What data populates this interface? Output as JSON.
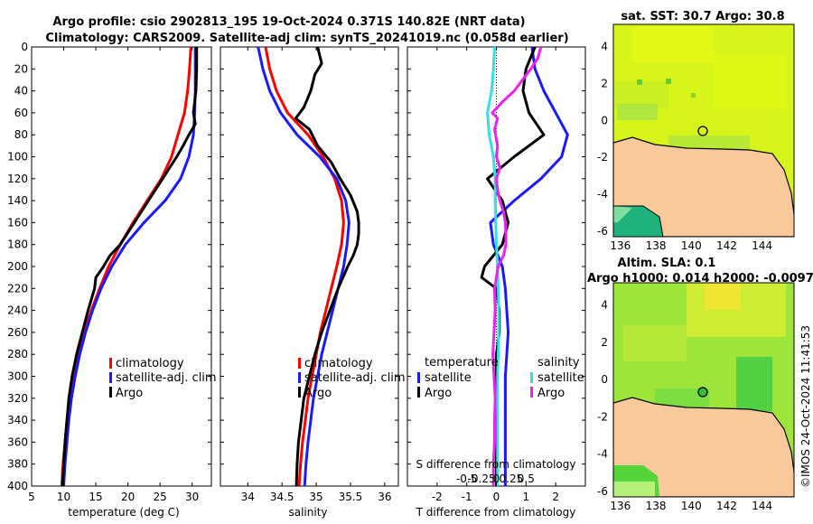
{
  "header": {
    "line1": "Argo profile: csio 2902813_195 19-Oct-2024 0.371S 140.82E (NRT data)",
    "line2": "Climatology: CARS2009. Satellite-adj clim: synTS_20241019.nc (0.058d earlier)"
  },
  "side_label": "©IMOS 24-Oct-2024 11:41:53",
  "colors": {
    "climatology": "#ff0000",
    "satellite": "#1a1aff",
    "argo": "#000000",
    "sal_satellite": "#33e0e8",
    "sal_argo": "#ee22ee",
    "land": "#f8c99a"
  },
  "chart_data": [
    {
      "id": "temperature",
      "type": "line",
      "xlabel": "temperature (deg C)",
      "xlim": [
        5,
        33
      ],
      "xticks": [
        "5",
        "10",
        "15",
        "20",
        "25",
        "30"
      ],
      "xtick_values": [
        5,
        10,
        15,
        20,
        25,
        30
      ],
      "ylim": [
        0,
        400
      ],
      "yticks": [
        "0",
        "20",
        "40",
        "60",
        "80",
        "100",
        "120",
        "140",
        "160",
        "180",
        "200",
        "220",
        "240",
        "260",
        "280",
        "300",
        "320",
        "340",
        "360",
        "380",
        "400"
      ],
      "ytick_values": [
        0,
        20,
        40,
        60,
        80,
        100,
        120,
        140,
        160,
        180,
        200,
        220,
        240,
        260,
        280,
        300,
        320,
        340,
        360,
        380,
        400
      ],
      "legend": [
        "climatology",
        "satellite-adj. clim",
        "Argo"
      ],
      "series": [
        {
          "name": "climatology",
          "color": "#ff0000",
          "depth": [
            0,
            20,
            40,
            60,
            80,
            100,
            120,
            140,
            160,
            180,
            200,
            220,
            240,
            260,
            280,
            300,
            320,
            340,
            360,
            380,
            400
          ],
          "values": [
            29.8,
            29.6,
            29.3,
            28.8,
            27.8,
            26.8,
            25.2,
            23.0,
            20.8,
            18.8,
            17.0,
            15.6,
            14.3,
            13.2,
            12.3,
            11.6,
            11.0,
            10.5,
            10.2,
            9.9,
            9.7
          ]
        },
        {
          "name": "satellite-adj. clim",
          "color": "#1a1aff",
          "depth": [
            0,
            20,
            40,
            60,
            80,
            100,
            120,
            140,
            160,
            180,
            200,
            220,
            240,
            260,
            280,
            300,
            320,
            340,
            360,
            380,
            400
          ],
          "values": [
            30.5,
            30.5,
            30.5,
            30.4,
            30.2,
            29.5,
            28.2,
            25.8,
            22.5,
            19.6,
            17.5,
            15.8,
            14.5,
            13.4,
            12.5,
            11.8,
            11.2,
            10.8,
            10.5,
            10.2,
            10.0
          ]
        },
        {
          "name": "Argo",
          "color": "#000000",
          "depth": [
            0,
            20,
            40,
            60,
            70,
            80,
            90,
            100,
            120,
            140,
            160,
            180,
            190,
            200,
            210,
            220,
            240,
            260,
            280,
            300,
            320,
            340,
            360,
            380,
            400
          ],
          "values": [
            30.7,
            30.7,
            30.6,
            30.2,
            30.5,
            29.5,
            28.6,
            27.6,
            25.4,
            23.2,
            21.0,
            18.8,
            17.2,
            16.2,
            15.0,
            14.8,
            13.8,
            12.9,
            12.0,
            11.3,
            10.8,
            10.5,
            10.2,
            10.0,
            9.8
          ]
        }
      ]
    },
    {
      "id": "salinity",
      "type": "line",
      "xlabel": "salinity",
      "xlim": [
        33.6,
        36.2
      ],
      "xticks": [
        "34",
        "34.5",
        "35",
        "35.5",
        "36"
      ],
      "xtick_values": [
        34,
        34.5,
        35,
        35.5,
        36
      ],
      "ylim": [
        0,
        400
      ],
      "legend": [
        "climatology",
        "satellite-adj. clim",
        "Argo"
      ],
      "series": [
        {
          "name": "climatology",
          "color": "#ff0000",
          "depth": [
            0,
            20,
            40,
            60,
            80,
            100,
            120,
            140,
            160,
            180,
            200,
            220,
            240,
            260,
            280,
            300,
            320,
            340,
            360,
            380,
            400
          ],
          "values": [
            34.26,
            34.32,
            34.42,
            34.58,
            34.88,
            35.1,
            35.27,
            35.37,
            35.4,
            35.37,
            35.3,
            35.22,
            35.14,
            35.06,
            35.0,
            34.94,
            34.88,
            34.84,
            34.8,
            34.77,
            34.75
          ]
        },
        {
          "name": "satellite-adj. clim",
          "color": "#1a1aff",
          "depth": [
            0,
            20,
            40,
            60,
            80,
            100,
            120,
            140,
            160,
            180,
            200,
            220,
            240,
            260,
            280,
            300,
            320,
            340,
            360,
            380,
            400
          ],
          "values": [
            34.15,
            34.22,
            34.32,
            34.48,
            34.72,
            35.05,
            35.3,
            35.43,
            35.48,
            35.45,
            35.4,
            35.32,
            35.24,
            35.16,
            35.08,
            35.02,
            34.96,
            34.92,
            34.88,
            34.85,
            34.83
          ]
        },
        {
          "name": "Argo",
          "color": "#000000",
          "depth": [
            0,
            15,
            25,
            40,
            55,
            65,
            75,
            90,
            105,
            120,
            135,
            150,
            160,
            170,
            180,
            190,
            200,
            220,
            240,
            260,
            280,
            300,
            320,
            340,
            360,
            380,
            400
          ],
          "values": [
            35.02,
            35.08,
            34.98,
            34.92,
            34.82,
            34.7,
            34.9,
            35.02,
            35.22,
            35.35,
            35.5,
            35.6,
            35.62,
            35.62,
            35.6,
            35.54,
            35.46,
            35.32,
            35.2,
            35.08,
            34.98,
            34.9,
            34.82,
            34.78,
            34.74,
            34.72,
            34.71
          ]
        }
      ]
    },
    {
      "id": "differences",
      "type": "line",
      "xlabel": "T difference from climatology",
      "xlim": [
        -3,
        3
      ],
      "xticks": [
        "-2",
        "-1",
        "0",
        "1",
        "2"
      ],
      "xtick_values": [
        -2,
        -1,
        0,
        1,
        2
      ],
      "top_label": "S difference from climatology",
      "top_ticks": [
        "-0.5",
        "-0.25",
        "0",
        "0.25",
        "0.5"
      ],
      "top_tick_values": [
        -0.5,
        -0.25,
        0,
        0.25,
        0.5
      ],
      "ylim": [
        0,
        400
      ],
      "legend_temperature_title": "temperature",
      "legend_salinity_title": "salinity",
      "legend": [
        "satellite",
        "Argo",
        "satellite",
        "Argo"
      ],
      "series": [
        {
          "name": "temperature satellite",
          "color": "#1a1aff",
          "depth": [
            0,
            20,
            40,
            60,
            80,
            100,
            120,
            140,
            160,
            180,
            200,
            220,
            240,
            260,
            280,
            300,
            320,
            340,
            360,
            380,
            400
          ],
          "values": [
            1.2,
            1.3,
            1.6,
            2.0,
            2.4,
            2.2,
            1.5,
            0.6,
            -0.2,
            -0.1,
            0.2,
            0.3,
            0.35,
            0.4,
            0.35,
            0.3,
            0.3,
            0.3,
            0.3,
            0.3,
            0.3
          ]
        },
        {
          "name": "temperature Argo",
          "color": "#000000",
          "depth": [
            0,
            20,
            40,
            60,
            80,
            100,
            120,
            140,
            160,
            180,
            200,
            210,
            220,
            240,
            260,
            280,
            300,
            320,
            340,
            360,
            380,
            400
          ],
          "values": [
            1.3,
            1.0,
            0.9,
            1.1,
            1.6,
            0.6,
            -0.3,
            0.2,
            0.4,
            0.2,
            -0.4,
            -0.5,
            0.0,
            0.1,
            0.1,
            0.0,
            0.0,
            0.0,
            0.0,
            0.0,
            0.0,
            0.0
          ]
        },
        {
          "name": "salinity satellite",
          "color": "#33e0e8",
          "depth": [
            0,
            20,
            40,
            60,
            80,
            100,
            120,
            140,
            160,
            180,
            200,
            220,
            240,
            260,
            280,
            300,
            320,
            340,
            360,
            380,
            400
          ],
          "values": [
            -0.03,
            -0.05,
            -0.08,
            -0.15,
            -0.12,
            -0.05,
            -0.02,
            -0.02,
            -0.01,
            0.0,
            0.02,
            0.03,
            0.04,
            0.04,
            0.03,
            0.02,
            0.02,
            0.02,
            0.02,
            0.02,
            0.02
          ]
        },
        {
          "name": "salinity Argo",
          "color": "#ee22ee",
          "depth": [
            0,
            10,
            20,
            40,
            50,
            60,
            65,
            75,
            90,
            100,
            110,
            120,
            130,
            140,
            150,
            160,
            170,
            180,
            190,
            200,
            220,
            240,
            260,
            280,
            300,
            320,
            340,
            360,
            380,
            400
          ],
          "values": [
            0.75,
            0.7,
            0.58,
            0.3,
            0.1,
            -0.07,
            0.02,
            -0.03,
            0.02,
            0.0,
            0.06,
            0.0,
            0.02,
            0.06,
            0.12,
            0.15,
            0.16,
            0.16,
            0.12,
            0.03,
            -0.03,
            -0.02,
            -0.04,
            -0.06,
            -0.04,
            -0.02,
            -0.03,
            -0.03,
            -0.05,
            -0.05
          ]
        }
      ]
    },
    {
      "id": "sst_map",
      "type": "heatmap",
      "title": "sat. SST: 30.7 Argo: 30.8",
      "xticks": [
        "136",
        "138",
        "140",
        "142",
        "144"
      ],
      "xtick_values": [
        136,
        138,
        140,
        142,
        144
      ],
      "yticks": [
        "4",
        "2",
        "0",
        "-2",
        "-4",
        "-6"
      ],
      "ytick_values": [
        4,
        2,
        0,
        -2,
        -4,
        -6
      ],
      "xlim": [
        135.6,
        145.8
      ],
      "ylim": [
        -6.3,
        5.2
      ],
      "argo_position": [
        140.82,
        -0.371
      ]
    },
    {
      "id": "sla_map",
      "type": "heatmap",
      "title": "Altim. SLA: 0.1",
      "subtitle": "Argo h1000: 0.014 h2000: -0.0097",
      "xticks": [
        "136",
        "138",
        "140",
        "142",
        "144"
      ],
      "xtick_values": [
        136,
        138,
        140,
        142,
        144
      ],
      "yticks": [
        "4",
        "2",
        "0",
        "-2",
        "-4",
        "-6"
      ],
      "ytick_values": [
        4,
        2,
        0,
        -2,
        -4,
        -6
      ],
      "xlim": [
        135.6,
        145.8
      ],
      "ylim": [
        -6.3,
        5.2
      ],
      "argo_position": [
        140.82,
        -0.371
      ]
    }
  ]
}
